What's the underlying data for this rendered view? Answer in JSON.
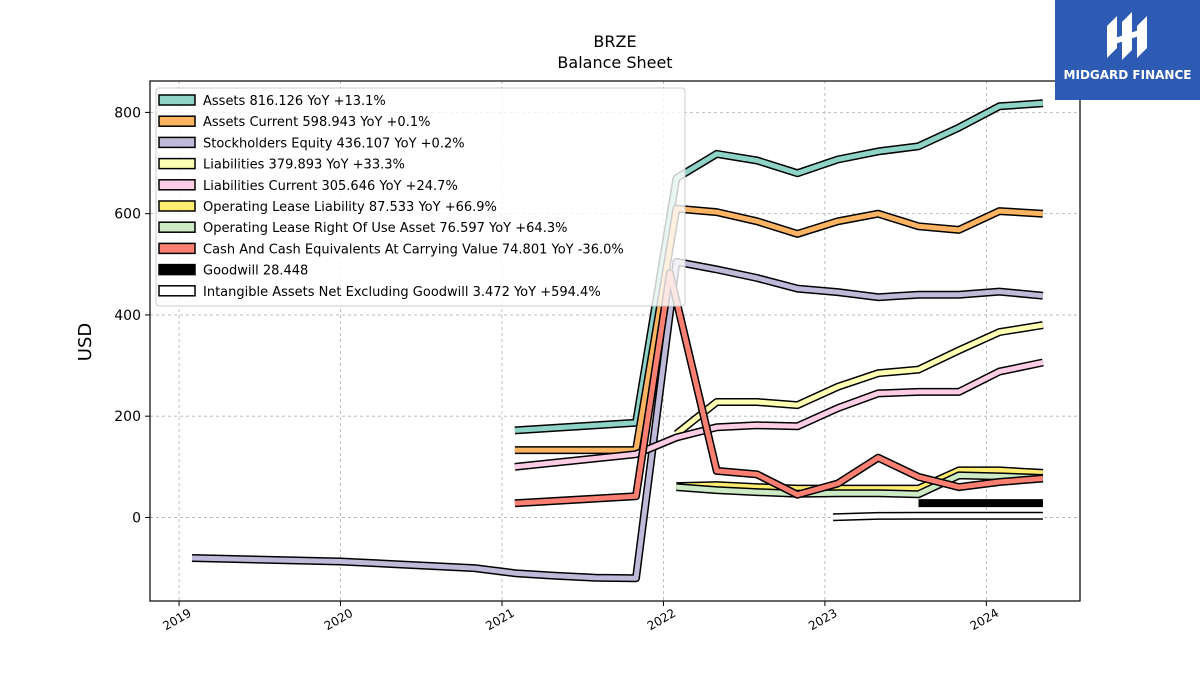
{
  "brand": {
    "name": "MIDGARD FINANCE",
    "logo_color": "#2d5bb4"
  },
  "chart_data": {
    "type": "line",
    "title": "BRZE",
    "subtitle": "Balance  Sheet",
    "ylabel": "USD",
    "xlabel": "",
    "xlim": [
      2018.82,
      2024.58
    ],
    "ylim": [
      -165,
      862
    ],
    "x_ticks": [
      2019,
      2020,
      2021,
      2022,
      2023,
      2024
    ],
    "y_ticks": [
      0,
      200,
      400,
      600,
      800
    ],
    "grid": true,
    "legend_position": "top-left",
    "series": [
      {
        "name": "Assets  816.126 YoY +13.1%",
        "color": "#8dd3c7",
        "points": [
          [
            2021.08,
            172
          ],
          [
            2021.83,
            187
          ],
          [
            2022.08,
            670
          ],
          [
            2022.33,
            718
          ],
          [
            2022.58,
            705
          ],
          [
            2022.83,
            680
          ],
          [
            2023.08,
            707
          ],
          [
            2023.33,
            723
          ],
          [
            2023.58,
            733
          ],
          [
            2023.83,
            770
          ],
          [
            2024.08,
            812
          ],
          [
            2024.35,
            818
          ]
        ]
      },
      {
        "name": "Assets Current  598.943 YoY +0.1%",
        "color": "#fdb462",
        "points": [
          [
            2021.08,
            133
          ],
          [
            2021.83,
            133
          ],
          [
            2022.08,
            610
          ],
          [
            2022.33,
            603
          ],
          [
            2022.58,
            585
          ],
          [
            2022.83,
            560
          ],
          [
            2023.08,
            585
          ],
          [
            2023.33,
            600
          ],
          [
            2023.58,
            575
          ],
          [
            2023.83,
            568
          ],
          [
            2024.08,
            605
          ],
          [
            2024.35,
            600
          ]
        ]
      },
      {
        "name": "Stockholders Equity  436.107 YoY +0.2%",
        "color": "#bebada",
        "points": [
          [
            2019.08,
            -80
          ],
          [
            2020.0,
            -87
          ],
          [
            2020.83,
            -100
          ],
          [
            2021.08,
            -110
          ],
          [
            2021.33,
            -115
          ],
          [
            2021.58,
            -119
          ],
          [
            2021.83,
            -120
          ],
          [
            2022.08,
            505
          ],
          [
            2022.33,
            490
          ],
          [
            2022.58,
            473
          ],
          [
            2022.83,
            452
          ],
          [
            2023.08,
            445
          ],
          [
            2023.33,
            435
          ],
          [
            2023.58,
            440
          ],
          [
            2023.83,
            440
          ],
          [
            2024.08,
            446
          ],
          [
            2024.35,
            438
          ]
        ]
      },
      {
        "name": "Liabilities  379.893 YoY +33.3%",
        "color": "#ffffb3",
        "points": [
          [
            2022.08,
            165
          ],
          [
            2022.33,
            228
          ],
          [
            2022.58,
            228
          ],
          [
            2022.83,
            222
          ],
          [
            2023.08,
            258
          ],
          [
            2023.33,
            285
          ],
          [
            2023.58,
            292
          ],
          [
            2023.83,
            330
          ],
          [
            2024.08,
            366
          ],
          [
            2024.35,
            380
          ]
        ]
      },
      {
        "name": "Liabilities Current  305.646 YoY +24.7%",
        "color": "#fccde5",
        "points": [
          [
            2021.08,
            100
          ],
          [
            2021.83,
            125
          ],
          [
            2022.08,
            158
          ],
          [
            2022.33,
            178
          ],
          [
            2022.58,
            182
          ],
          [
            2022.83,
            180
          ],
          [
            2023.08,
            216
          ],
          [
            2023.33,
            245
          ],
          [
            2023.58,
            248
          ],
          [
            2023.83,
            248
          ],
          [
            2024.08,
            288
          ],
          [
            2024.35,
            306
          ]
        ]
      },
      {
        "name": "Operating Lease Liability  87.533 YoY +66.9%",
        "color": "#ffed6f",
        "points": [
          [
            2022.08,
            62
          ],
          [
            2022.33,
            64
          ],
          [
            2022.58,
            60
          ],
          [
            2022.83,
            57
          ],
          [
            2023.08,
            57
          ],
          [
            2023.33,
            57
          ],
          [
            2023.58,
            57
          ],
          [
            2023.83,
            93
          ],
          [
            2024.08,
            93
          ],
          [
            2024.35,
            88
          ]
        ]
      },
      {
        "name": "Operating Lease Right Of Use Asset  76.597 YoY +64.3%",
        "color": "#ccebc5",
        "points": [
          [
            2022.08,
            60
          ],
          [
            2022.33,
            54
          ],
          [
            2022.58,
            50
          ],
          [
            2022.83,
            47
          ],
          [
            2023.08,
            48
          ],
          [
            2023.33,
            48
          ],
          [
            2023.58,
            46
          ],
          [
            2023.83,
            83
          ],
          [
            2024.08,
            81
          ],
          [
            2024.35,
            78
          ]
        ]
      },
      {
        "name": "Cash And Cash Equivalents At Carrying Value  74.801 YoY -36.0%",
        "color": "#fb8072",
        "points": [
          [
            2021.08,
            28
          ],
          [
            2021.83,
            42
          ],
          [
            2022.04,
            483
          ],
          [
            2022.33,
            92
          ],
          [
            2022.58,
            85
          ],
          [
            2022.83,
            45
          ],
          [
            2023.08,
            67
          ],
          [
            2023.33,
            118
          ],
          [
            2023.58,
            80
          ],
          [
            2023.83,
            60
          ],
          [
            2024.08,
            70
          ],
          [
            2024.35,
            77
          ]
        ]
      },
      {
        "name": "Goodwill  28.448",
        "color": "#000000",
        "points": [
          [
            2023.58,
            28.4
          ],
          [
            2023.83,
            28.4
          ],
          [
            2024.08,
            28.4
          ],
          [
            2024.35,
            28.4
          ]
        ]
      },
      {
        "name": "Intangible Assets Net Excluding Goodwill  3.472 YoY +594.4%",
        "color": "#ffffff",
        "points": [
          [
            2023.05,
            0.5
          ],
          [
            2023.33,
            3.0
          ],
          [
            2023.58,
            3.5
          ],
          [
            2023.83,
            3.5
          ],
          [
            2024.08,
            3.5
          ],
          [
            2024.35,
            3.5
          ]
        ]
      }
    ]
  }
}
